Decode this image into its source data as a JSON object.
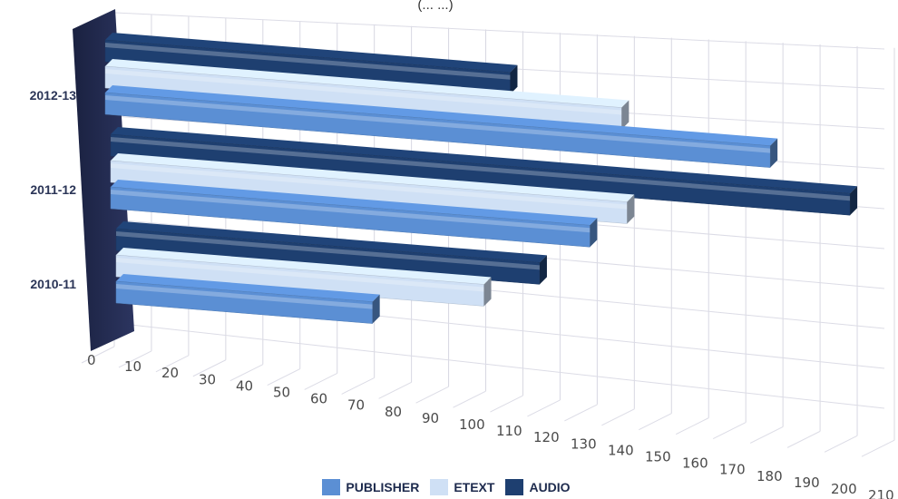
{
  "chart_data": {
    "type": "bar",
    "orientation": "horizontal",
    "title": "(... ...)",
    "categories": [
      "2010-11",
      "2011-12",
      "2012-13"
    ],
    "series": [
      {
        "name": "PUBLISHER",
        "color": "#5b8fd4",
        "values": [
          70,
          130,
          180
        ]
      },
      {
        "name": "ETEXT",
        "color": "#cfe0f5",
        "values": [
          100,
          140,
          140
        ]
      },
      {
        "name": "AUDIO",
        "color": "#1e3f70",
        "values": [
          115,
          200,
          110
        ]
      }
    ],
    "x_ticks": [
      "0",
      "10",
      "20",
      "30",
      "40",
      "50",
      "60",
      "70",
      "80",
      "90",
      "100",
      "110",
      "120",
      "130",
      "140",
      "150",
      "160",
      "170",
      "180",
      "190",
      "200",
      "210"
    ],
    "xlim": [
      0,
      210
    ],
    "grid": true,
    "legend_position": "bottom-center"
  }
}
